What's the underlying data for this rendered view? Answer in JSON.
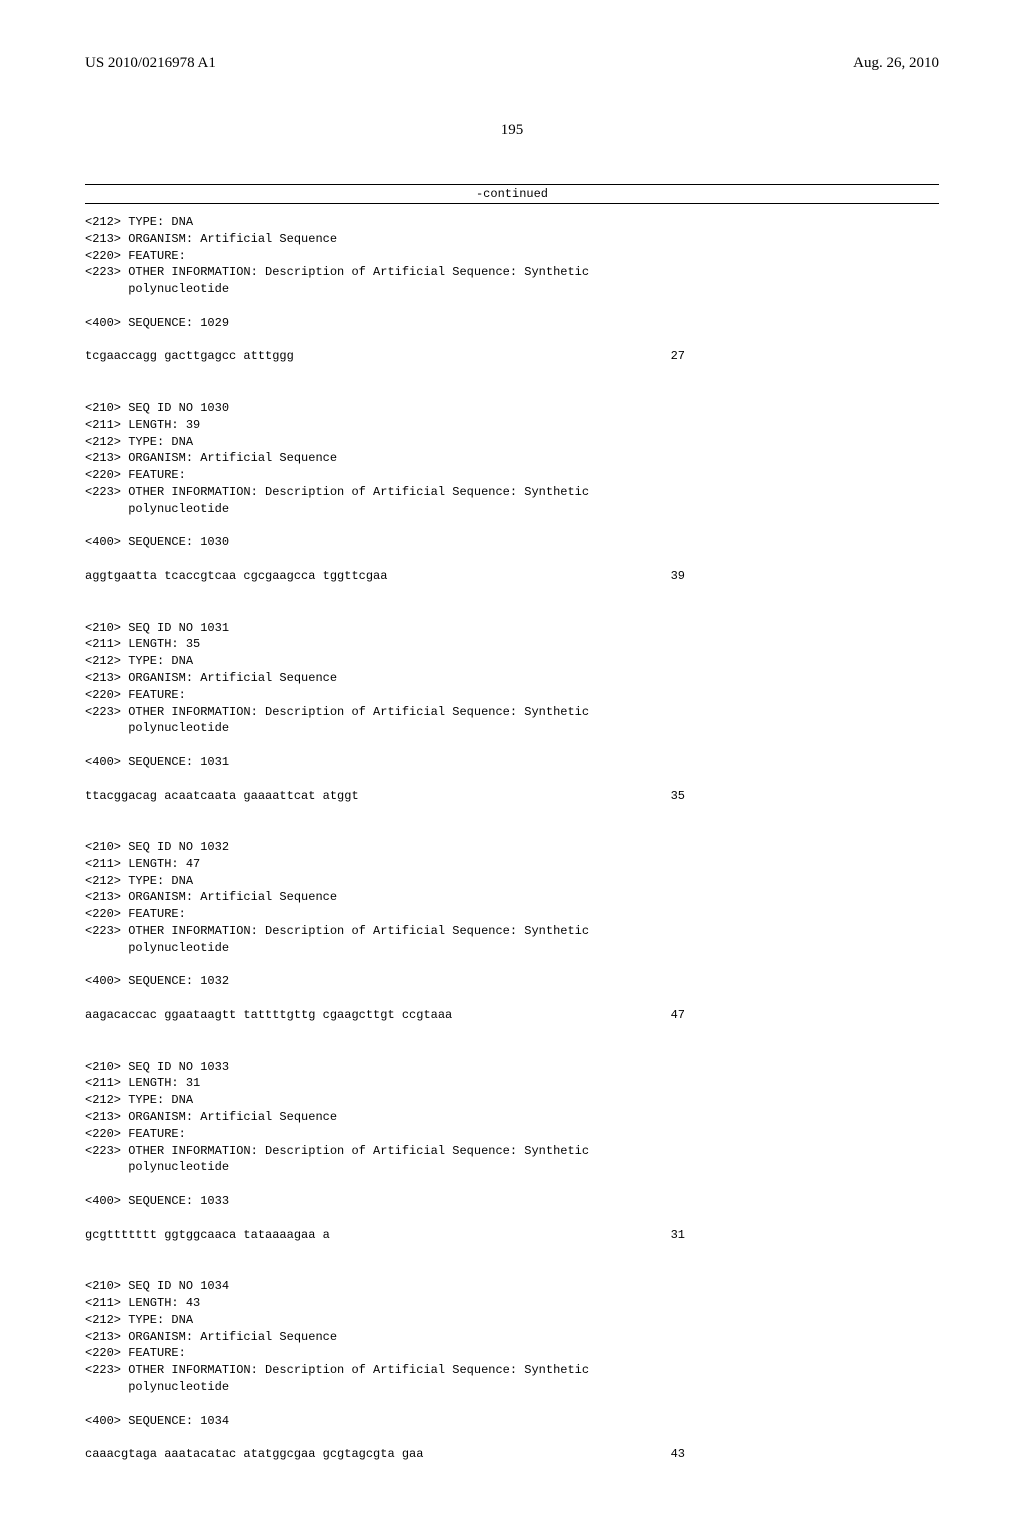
{
  "header": {
    "pub_number": "US 2010/0216978 A1",
    "pub_date": "Aug. 26, 2010"
  },
  "page_number": "195",
  "continued_label": "-continued",
  "sequences": [
    {
      "meta": [
        "<212> TYPE: DNA",
        "<213> ORGANISM: Artificial Sequence",
        "<220> FEATURE:",
        "<223> OTHER INFORMATION: Description of Artificial Sequence: Synthetic",
        "      polynucleotide",
        "",
        "<400> SEQUENCE: 1029"
      ],
      "seq": "tcgaaccagg gacttgagcc atttggg",
      "length": "27"
    },
    {
      "meta": [
        "<210> SEQ ID NO 1030",
        "<211> LENGTH: 39",
        "<212> TYPE: DNA",
        "<213> ORGANISM: Artificial Sequence",
        "<220> FEATURE:",
        "<223> OTHER INFORMATION: Description of Artificial Sequence: Synthetic",
        "      polynucleotide",
        "",
        "<400> SEQUENCE: 1030"
      ],
      "seq": "aggtgaatta tcaccgtcaa cgcgaagcca tggttcgaa",
      "length": "39"
    },
    {
      "meta": [
        "<210> SEQ ID NO 1031",
        "<211> LENGTH: 35",
        "<212> TYPE: DNA",
        "<213> ORGANISM: Artificial Sequence",
        "<220> FEATURE:",
        "<223> OTHER INFORMATION: Description of Artificial Sequence: Synthetic",
        "      polynucleotide",
        "",
        "<400> SEQUENCE: 1031"
      ],
      "seq": "ttacggacag acaatcaata gaaaattcat atggt",
      "length": "35"
    },
    {
      "meta": [
        "<210> SEQ ID NO 1032",
        "<211> LENGTH: 47",
        "<212> TYPE: DNA",
        "<213> ORGANISM: Artificial Sequence",
        "<220> FEATURE:",
        "<223> OTHER INFORMATION: Description of Artificial Sequence: Synthetic",
        "      polynucleotide",
        "",
        "<400> SEQUENCE: 1032"
      ],
      "seq": "aagacaccac ggaataagtt tattttgttg cgaagcttgt ccgtaaa",
      "length": "47"
    },
    {
      "meta": [
        "<210> SEQ ID NO 1033",
        "<211> LENGTH: 31",
        "<212> TYPE: DNA",
        "<213> ORGANISM: Artificial Sequence",
        "<220> FEATURE:",
        "<223> OTHER INFORMATION: Description of Artificial Sequence: Synthetic",
        "      polynucleotide",
        "",
        "<400> SEQUENCE: 1033"
      ],
      "seq": "gcgttttttt ggtggcaaca tataaaagaa a",
      "length": "31"
    },
    {
      "meta": [
        "<210> SEQ ID NO 1034",
        "<211> LENGTH: 43",
        "<212> TYPE: DNA",
        "<213> ORGANISM: Artificial Sequence",
        "<220> FEATURE:",
        "<223> OTHER INFORMATION: Description of Artificial Sequence: Synthetic",
        "      polynucleotide",
        "",
        "<400> SEQUENCE: 1034"
      ],
      "seq": "caaacgtaga aaatacatac atatggcgaa gcgtagcgta gaa",
      "length": "43"
    }
  ]
}
